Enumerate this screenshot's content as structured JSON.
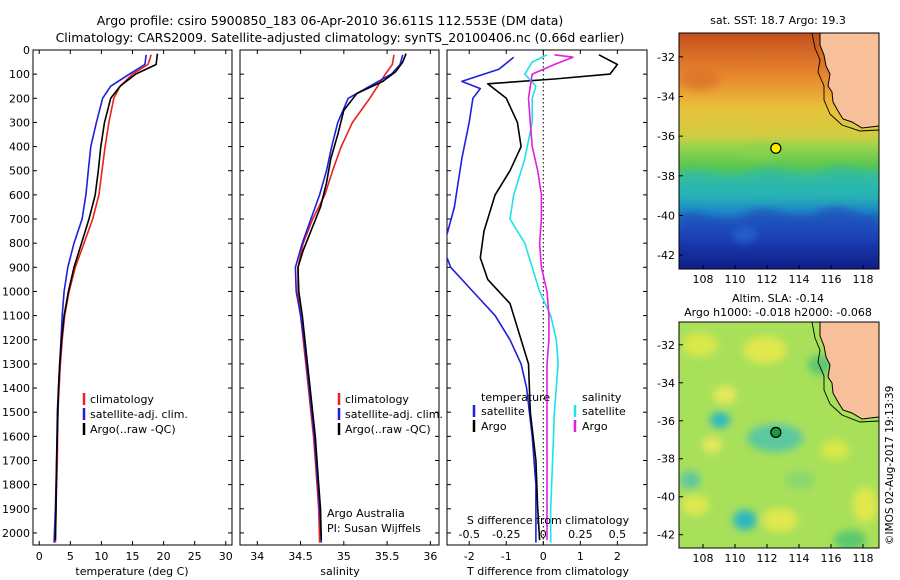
{
  "header": {
    "title_line1": "Argo profile: csiro 5900850_183 06-Apr-2010 36.611S 112.553E (DM data)",
    "title_line2": "Climatology: CARS2009. Satellite-adjusted climatology: synTS_20100406.nc (0.66d earlier)"
  },
  "colors": {
    "climatology": "#e8231e",
    "satellite": "#1f1fdc",
    "argo": "#000000",
    "satellite_salinity": "#22e0e8",
    "argo_salinity": "#e020e0",
    "land": "#f7c09a"
  },
  "chart_data": [
    {
      "id": "temperature",
      "type": "line",
      "xlabel": "temperature (deg C)",
      "ylabel": "",
      "xlim": [
        -1,
        31
      ],
      "ylim": [
        2050,
        0
      ],
      "xticks": [
        0,
        5,
        10,
        15,
        20,
        25,
        30
      ],
      "yticks": [
        0,
        100,
        200,
        300,
        400,
        500,
        600,
        700,
        800,
        900,
        1000,
        1100,
        1200,
        1300,
        1400,
        1500,
        1600,
        1700,
        1800,
        1900,
        2000
      ],
      "legend": {
        "placement": "lower-center",
        "entries": [
          "climatology",
          "satellite-adj. clim.",
          "Argo(..raw -QC)"
        ]
      },
      "series": [
        {
          "name": "climatology",
          "color": "#e8231e",
          "points": [
            [
              18.0,
              20
            ],
            [
              17.5,
              60
            ],
            [
              15.0,
              100
            ],
            [
              13.0,
              150
            ],
            [
              12.0,
              200
            ],
            [
              11.2,
              300
            ],
            [
              10.6,
              400
            ],
            [
              10.1,
              500
            ],
            [
              9.6,
              600
            ],
            [
              8.6,
              700
            ],
            [
              7.2,
              800
            ],
            [
              5.8,
              900
            ],
            [
              4.8,
              1000
            ],
            [
              4.1,
              1100
            ],
            [
              3.7,
              1200
            ],
            [
              3.4,
              1300
            ],
            [
              3.2,
              1400
            ],
            [
              3.0,
              1500
            ],
            [
              2.9,
              1700
            ],
            [
              2.7,
              1900
            ],
            [
              2.6,
              2040
            ]
          ]
        },
        {
          "name": "satellite-adj. clim.",
          "color": "#1f1fdc",
          "points": [
            [
              17.2,
              20
            ],
            [
              17.0,
              60
            ],
            [
              14.5,
              100
            ],
            [
              11.5,
              150
            ],
            [
              10.2,
              200
            ],
            [
              9.2,
              300
            ],
            [
              8.3,
              400
            ],
            [
              7.9,
              500
            ],
            [
              7.5,
              600
            ],
            [
              6.9,
              700
            ],
            [
              5.6,
              800
            ],
            [
              4.6,
              900
            ],
            [
              4.0,
              1000
            ],
            [
              3.7,
              1100
            ],
            [
              3.5,
              1200
            ],
            [
              3.3,
              1300
            ],
            [
              3.1,
              1400
            ],
            [
              2.9,
              1500
            ],
            [
              2.8,
              1700
            ],
            [
              2.6,
              1900
            ],
            [
              2.4,
              2040
            ]
          ]
        },
        {
          "name": "Argo(..raw -QC)",
          "color": "#000000",
          "points": [
            [
              19.0,
              15
            ],
            [
              18.8,
              60
            ],
            [
              15.5,
              100
            ],
            [
              13.0,
              150
            ],
            [
              11.5,
              200
            ],
            [
              10.5,
              300
            ],
            [
              9.9,
              400
            ],
            [
              9.5,
              500
            ],
            [
              9.0,
              600
            ],
            [
              8.0,
              700
            ],
            [
              6.8,
              800
            ],
            [
              5.6,
              900
            ],
            [
              4.7,
              1000
            ],
            [
              4.0,
              1100
            ],
            [
              3.6,
              1200
            ],
            [
              3.3,
              1300
            ],
            [
              3.1,
              1400
            ],
            [
              3.0,
              1500
            ],
            [
              2.8,
              1700
            ],
            [
              2.7,
              1900
            ],
            [
              2.6,
              2030
            ]
          ]
        }
      ]
    },
    {
      "id": "salinity",
      "type": "line",
      "xlabel": "salinity",
      "xlim": [
        33.8,
        36.1
      ],
      "ylim": [
        2050,
        0
      ],
      "xticks": [
        34,
        34.5,
        35,
        35.5,
        36
      ],
      "legend": {
        "placement": "lower-center",
        "entries": [
          "climatology",
          "satellite-adj. clim.",
          "Argo(..raw -QC)"
        ]
      },
      "annotation": [
        "Argo Australia",
        "PI: Susan Wijffels"
      ],
      "series": [
        {
          "name": "climatology",
          "color": "#e8231e",
          "points": [
            [
              35.58,
              20
            ],
            [
              35.56,
              60
            ],
            [
              35.48,
              100
            ],
            [
              35.3,
              200
            ],
            [
              35.1,
              300
            ],
            [
              34.97,
              400
            ],
            [
              34.87,
              500
            ],
            [
              34.78,
              600
            ],
            [
              34.64,
              700
            ],
            [
              34.53,
              800
            ],
            [
              34.47,
              900
            ],
            [
              34.47,
              1000
            ],
            [
              34.5,
              1100
            ],
            [
              34.53,
              1200
            ],
            [
              34.56,
              1300
            ],
            [
              34.59,
              1400
            ],
            [
              34.62,
              1500
            ],
            [
              34.65,
              1600
            ],
            [
              34.67,
              1700
            ],
            [
              34.69,
              1800
            ],
            [
              34.71,
              1900
            ],
            [
              34.72,
              2040
            ]
          ]
        },
        {
          "name": "satellite-adj. clim.",
          "color": "#1f1fdc",
          "points": [
            [
              35.68,
              20
            ],
            [
              35.65,
              60
            ],
            [
              35.55,
              100
            ],
            [
              35.3,
              150
            ],
            [
              35.05,
              200
            ],
            [
              34.93,
              300
            ],
            [
              34.86,
              400
            ],
            [
              34.8,
              500
            ],
            [
              34.72,
              600
            ],
            [
              34.62,
              700
            ],
            [
              34.52,
              800
            ],
            [
              34.44,
              900
            ],
            [
              34.45,
              1000
            ],
            [
              34.5,
              1100
            ],
            [
              34.54,
              1200
            ],
            [
              34.57,
              1300
            ],
            [
              34.6,
              1400
            ],
            [
              34.63,
              1500
            ],
            [
              34.66,
              1600
            ],
            [
              34.68,
              1700
            ],
            [
              34.7,
              1800
            ],
            [
              34.72,
              1900
            ],
            [
              34.74,
              2040
            ]
          ]
        },
        {
          "name": "Argo(..raw -QC)",
          "color": "#000000",
          "points": [
            [
              35.72,
              15
            ],
            [
              35.68,
              50
            ],
            [
              35.6,
              90
            ],
            [
              35.45,
              130
            ],
            [
              35.15,
              180
            ],
            [
              35.0,
              250
            ],
            [
              34.93,
              350
            ],
            [
              34.85,
              450
            ],
            [
              34.8,
              550
            ],
            [
              34.73,
              650
            ],
            [
              34.62,
              750
            ],
            [
              34.53,
              830
            ],
            [
              34.47,
              900
            ],
            [
              34.48,
              1000
            ],
            [
              34.52,
              1100
            ],
            [
              34.55,
              1200
            ],
            [
              34.58,
              1300
            ],
            [
              34.61,
              1400
            ],
            [
              34.64,
              1500
            ],
            [
              34.67,
              1600
            ],
            [
              34.69,
              1700
            ],
            [
              34.71,
              1800
            ],
            [
              34.73,
              1900
            ],
            [
              34.74,
              2030
            ]
          ]
        }
      ]
    },
    {
      "id": "difference",
      "type": "line",
      "xlabel": "T difference from climatology",
      "xlabel_top": "S difference from climatology",
      "xlim": [
        -2.6,
        2.8
      ],
      "ylim": [
        2050,
        0
      ],
      "xticks": [
        -2,
        -1,
        0,
        1,
        2
      ],
      "sticks": [
        "-0.5",
        "-0.25",
        "0",
        "0.25",
        "0.5"
      ],
      "sticks_pos": [
        -2,
        -1,
        0,
        1,
        2
      ],
      "legend": {
        "placement": "lower-center",
        "temperature_title": "temperature",
        "salinity_title": "salinity",
        "entries": [
          "satellite",
          "Argo",
          "satellite",
          "Argo"
        ]
      },
      "series": [
        {
          "name": "temperature satellite",
          "color": "#1f1fdc",
          "points": [
            [
              -0.8,
              30
            ],
            [
              -1.2,
              80
            ],
            [
              -2.2,
              130
            ],
            [
              -1.7,
              160
            ],
            [
              -1.9,
              200
            ],
            [
              -2.0,
              300
            ],
            [
              -2.2,
              450
            ],
            [
              -2.4,
              650
            ],
            [
              -2.7,
              820
            ],
            [
              -2.5,
              900
            ],
            [
              -1.9,
              1000
            ],
            [
              -1.3,
              1100
            ],
            [
              -0.9,
              1200
            ],
            [
              -0.6,
              1300
            ],
            [
              -0.45,
              1400
            ],
            [
              -0.3,
              1600
            ],
            [
              -0.2,
              1800
            ],
            [
              -0.2,
              2040
            ]
          ]
        },
        {
          "name": "temperature Argo",
          "color": "#000000",
          "points": [
            [
              1.5,
              20
            ],
            [
              2.0,
              60
            ],
            [
              1.8,
              100
            ],
            [
              0.3,
              120
            ],
            [
              -1.5,
              140
            ],
            [
              -1.0,
              200
            ],
            [
              -0.7,
              300
            ],
            [
              -0.6,
              400
            ],
            [
              -0.9,
              500
            ],
            [
              -1.3,
              600
            ],
            [
              -1.6,
              750
            ],
            [
              -1.7,
              860
            ],
            [
              -1.5,
              950
            ],
            [
              -0.9,
              1050
            ],
            [
              -0.7,
              1150
            ],
            [
              -0.4,
              1300
            ],
            [
              -0.35,
              1500
            ],
            [
              -0.2,
              1700
            ],
            [
              -0.15,
              1900
            ],
            [
              -0.1,
              2030
            ]
          ]
        },
        {
          "name": "salinity satellite",
          "color": "#22e0e8",
          "points": [
            [
              0.1,
              20
            ],
            [
              -0.3,
              50
            ],
            [
              -0.5,
              100
            ],
            [
              -0.2,
              150
            ],
            [
              -0.3,
              200
            ],
            [
              -0.3,
              300
            ],
            [
              -0.5,
              450
            ],
            [
              -0.8,
              600
            ],
            [
              -0.9,
              700
            ],
            [
              -0.5,
              800
            ],
            [
              -0.3,
              900
            ],
            [
              -0.1,
              1000
            ],
            [
              0.2,
              1100
            ],
            [
              0.35,
              1200
            ],
            [
              0.4,
              1300
            ],
            [
              0.3,
              1500
            ],
            [
              0.25,
              1700
            ],
            [
              0.2,
              1900
            ],
            [
              0.2,
              2040
            ]
          ]
        },
        {
          "name": "salinity Argo",
          "color": "#e020e0",
          "points": [
            [
              0.3,
              20
            ],
            [
              0.8,
              30
            ],
            [
              0.3,
              60
            ],
            [
              -0.3,
              100
            ],
            [
              -0.4,
              200
            ],
            [
              -0.35,
              300
            ],
            [
              -0.3,
              400
            ],
            [
              -0.15,
              500
            ],
            [
              -0.05,
              600
            ],
            [
              -0.05,
              700
            ],
            [
              -0.1,
              800
            ],
            [
              -0.05,
              900
            ],
            [
              0.1,
              1000
            ],
            [
              0.15,
              1100
            ],
            [
              0.15,
              1200
            ],
            [
              0.1,
              1300
            ],
            [
              0.1,
              1500
            ],
            [
              0.1,
              1700
            ],
            [
              0.1,
              1900
            ],
            [
              0.1,
              2030
            ]
          ]
        }
      ]
    },
    {
      "id": "sst_map",
      "type": "heatmap",
      "title": "sat. SST: 18.7  Argo: 19.3",
      "xticks": [
        108,
        110,
        112,
        114,
        116,
        118
      ],
      "yticks": [
        -32,
        -34,
        -36,
        -38,
        -40,
        -42
      ],
      "xlim": [
        106.5,
        119
      ],
      "ylim": [
        -42.7,
        -30.8
      ],
      "marker": {
        "lon": 112.553,
        "lat": -36.611
      }
    },
    {
      "id": "sla_map",
      "type": "heatmap",
      "title": "Altim. SLA: -0.14",
      "subtitle": "Argo h1000: -0.018  h2000: -0.068",
      "xticks": [
        108,
        110,
        112,
        114,
        116,
        118
      ],
      "yticks": [
        -32,
        -34,
        -36,
        -38,
        -40,
        -42
      ],
      "xlim": [
        106.5,
        119
      ],
      "ylim": [
        -42.7,
        -30.8
      ],
      "marker": {
        "lon": 112.553,
        "lat": -36.611
      }
    }
  ],
  "footer_stamp": "©IMOS 02-Aug-2017 19:13:39"
}
